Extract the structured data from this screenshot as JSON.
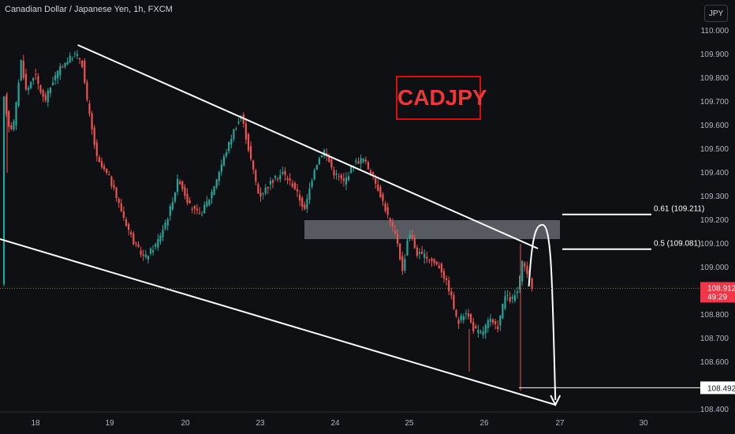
{
  "header": {
    "title": "Canadian Dollar / Japanese Yen, 1h, FXCM",
    "currency": "JPY"
  },
  "badge": {
    "symbol": "CADJPY"
  },
  "chart_data": {
    "type": "candlestick",
    "ylim": [
      108.38,
      110.04
    ],
    "y_ticks": [
      "110.000",
      "109.900",
      "109.800",
      "109.700",
      "109.600",
      "109.500",
      "109.400",
      "109.300",
      "109.200",
      "109.100",
      "109.000",
      "108.800",
      "108.700",
      "108.600",
      "108.400"
    ],
    "x_ticks": [
      "18",
      "19",
      "20",
      "23",
      "24",
      "25",
      "26",
      "27",
      "30"
    ],
    "current_price": {
      "value": "108.912",
      "countdown": "49:29"
    },
    "target_price": {
      "value": "108.492"
    },
    "fib_levels": [
      {
        "label": "0.61 (109.211)",
        "value": 109.211
      },
      {
        "label": "0.5 (109.081)",
        "value": 109.081
      }
    ],
    "resistance_zone": {
      "low": 109.12,
      "high": 109.2
    },
    "channel": {
      "upper": [
        {
          "x": "18.57",
          "y": 109.94
        },
        {
          "x": "26.71",
          "y": 109.08
        }
      ],
      "lower": [
        {
          "x": "17.63",
          "y": 109.12
        },
        {
          "x": "26.94",
          "y": 108.42
        }
      ]
    },
    "projection": [
      {
        "x": "26.59",
        "y": 108.92
      },
      {
        "x": "26.77",
        "y": 109.18
      },
      {
        "x": "26.94",
        "y": 108.42
      }
    ],
    "colors": {
      "up": "#26a69a",
      "down": "#ef5350",
      "background": "#0e1014",
      "lines": "#ffffff",
      "price_tag": "#f23645"
    }
  }
}
